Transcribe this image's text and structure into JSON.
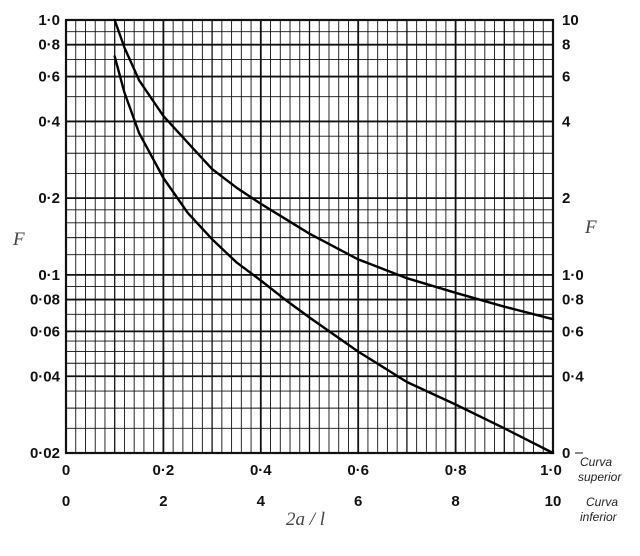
{
  "chart_data": {
    "type": "line",
    "scale": "log-y",
    "grid": true,
    "xlabel": "2a / l",
    "ylabel_left": "F",
    "ylabel_right": "F",
    "x_top": {
      "range": [
        0,
        1.0
      ],
      "ticks": [
        0,
        0.2,
        0.4,
        0.6,
        0.8,
        1.0
      ],
      "tick_labels": [
        "0",
        "0·2",
        "0·4",
        "0·6",
        "0·8",
        "1·0"
      ],
      "note": "Curva superior"
    },
    "x_bottom": {
      "range": [
        0,
        10
      ],
      "ticks": [
        0,
        2,
        4,
        6,
        8,
        10
      ],
      "tick_labels": [
        "0",
        "2",
        "4",
        "6",
        "8",
        "10"
      ],
      "note": "Curva inferior"
    },
    "y_left": {
      "range": [
        0.02,
        1.0
      ],
      "ticks": [
        0.02,
        0.04,
        0.06,
        0.08,
        0.1,
        0.2,
        0.4,
        0.6,
        0.8,
        1.0
      ],
      "tick_labels": [
        "0·02",
        "0·04",
        "0·06",
        "0·08",
        "0·1",
        "0·2",
        "0·4",
        "0·6",
        "0·8",
        "1·0"
      ]
    },
    "y_right": {
      "range": [
        0.2,
        10
      ],
      "ticks": [
        0.4,
        0.6,
        0.8,
        1.0,
        2,
        4,
        6,
        8,
        10
      ],
      "tick_labels": [
        "0·4",
        "0·6",
        "0·8",
        "1·0",
        "2",
        "4",
        "6",
        "8",
        "10"
      ],
      "zero_label": "0"
    },
    "grid_x_step": 0.02,
    "grid_y_values": [
      0.02,
      0.025,
      0.03,
      0.035,
      0.04,
      0.045,
      0.05,
      0.055,
      0.06,
      0.07,
      0.08,
      0.09,
      0.1,
      0.12,
      0.14,
      0.16,
      0.18,
      0.2,
      0.25,
      0.3,
      0.35,
      0.4,
      0.5,
      0.6,
      0.7,
      0.8,
      0.9,
      1.0
    ],
    "series": [
      {
        "x": [
          0.1,
          0.12,
          0.15,
          0.2,
          0.25,
          0.3,
          0.35,
          0.4,
          0.5,
          0.6,
          0.7,
          0.8,
          0.9,
          1.0
        ],
        "y": [
          1.0,
          0.78,
          0.58,
          0.42,
          0.33,
          0.26,
          0.22,
          0.19,
          0.145,
          0.115,
          0.097,
          0.085,
          0.075,
          0.067
        ]
      },
      {
        "x": [
          0.1,
          0.12,
          0.15,
          0.2,
          0.25,
          0.3,
          0.35,
          0.4,
          0.45,
          0.5,
          0.6,
          0.7,
          0.8,
          0.9,
          1.0
        ],
        "y": [
          0.72,
          0.52,
          0.36,
          0.24,
          0.175,
          0.138,
          0.112,
          0.095,
          0.08,
          0.068,
          0.05,
          0.038,
          0.031,
          0.025,
          0.02
        ]
      }
    ]
  }
}
